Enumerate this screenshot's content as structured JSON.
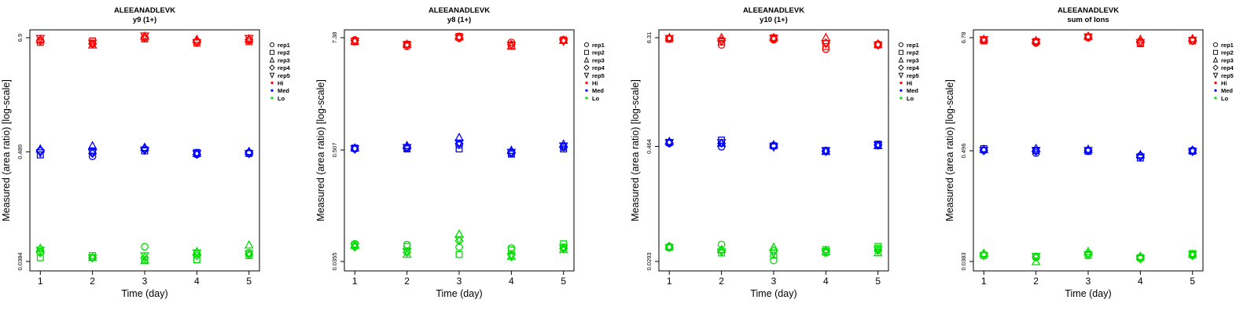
{
  "chart_data": [
    {
      "type": "scatter",
      "title": "ALEEANADLEVK",
      "subtitle": "y9 (1+)",
      "xlabel": "Time (day)",
      "ylabel": "Measured (area ratio) [log-scale]",
      "x_ticks": [
        "1",
        "2",
        "3",
        "4",
        "5"
      ],
      "y_ticks": [
        "0.0384",
        "0.489",
        "6.9"
      ],
      "y_scale": "log",
      "ylim": [
        0.0384,
        6.9
      ],
      "legend": {
        "placement": "right",
        "entries": [
          {
            "label": "rep1",
            "symbol": "circle"
          },
          {
            "label": "rep2",
            "symbol": "square"
          },
          {
            "label": "rep3",
            "symbol": "triangle"
          },
          {
            "label": "rep4",
            "symbol": "diamond"
          },
          {
            "label": "rep5",
            "symbol": "triangle-down"
          },
          {
            "label": "Hi",
            "dot_color": "#ff0000"
          },
          {
            "label": "Med",
            "dot_color": "#0000ff"
          },
          {
            "label": "Lo",
            "dot_color": "#00dd00"
          }
        ]
      },
      "series": [
        {
          "group": "Hi",
          "color": "#ff0000",
          "reps": [
            [
              6.5,
              6.0,
              6.9,
              6.3,
              6.5
            ],
            [
              6.2,
              6.4,
              6.7,
              6.1,
              6.3
            ],
            [
              6.6,
              5.8,
              7.1,
              6.6,
              6.7
            ],
            [
              6.4,
              6.0,
              6.9,
              6.4,
              6.6
            ],
            [
              6.8,
              6.1,
              7.2,
              6.2,
              6.8
            ]
          ]
        },
        {
          "group": "Med",
          "color": "#0000ff",
          "reps": [
            [
              0.5,
              0.44,
              0.52,
              0.46,
              0.48
            ],
            [
              0.455,
              0.5,
              0.5,
              0.48,
              0.47
            ],
            [
              0.52,
              0.56,
              0.54,
              0.47,
              0.49
            ],
            [
              0.5,
              0.47,
              0.53,
              0.46,
              0.48
            ],
            [
              0.48,
              0.48,
              0.51,
              0.47,
              0.47
            ]
          ]
        },
        {
          "group": "Lo",
          "color": "#00dd00",
          "reps": [
            [
              0.048,
              0.042,
              0.054,
              0.046,
              0.047
            ],
            [
              0.042,
              0.044,
              0.04,
              0.04,
              0.044
            ],
            [
              0.052,
              0.042,
              0.039,
              0.048,
              0.056
            ],
            [
              0.047,
              0.042,
              0.042,
              0.044,
              0.045
            ],
            [
              0.05,
              0.042,
              0.044,
              0.047,
              0.046
            ]
          ]
        }
      ]
    },
    {
      "type": "scatter",
      "title": "ALEEANADLEVK",
      "subtitle": "y8 (1+)",
      "xlabel": "Time (day)",
      "ylabel": "Measured (area ratio) [log-scale]",
      "x_ticks": [
        "1",
        "2",
        "3",
        "4",
        "5"
      ],
      "y_ticks": [
        "0.0355",
        "0.507",
        "7.38"
      ],
      "y_scale": "log",
      "ylim": [
        0.0355,
        7.38
      ],
      "legend": {
        "placement": "right",
        "entries": [
          {
            "label": "rep1",
            "symbol": "circle"
          },
          {
            "label": "rep2",
            "symbol": "square"
          },
          {
            "label": "rep3",
            "symbol": "triangle"
          },
          {
            "label": "rep4",
            "symbol": "diamond"
          },
          {
            "label": "rep5",
            "symbol": "triangle-down"
          },
          {
            "label": "Hi",
            "dot_color": "#ff0000"
          },
          {
            "label": "Med",
            "dot_color": "#0000ff"
          },
          {
            "label": "Lo",
            "dot_color": "#00dd00"
          }
        ]
      },
      "series": [
        {
          "group": "Hi",
          "color": "#ff0000",
          "reps": [
            [
              7.0,
              6.0,
              7.3,
              6.6,
              6.9
            ],
            [
              6.7,
              6.3,
              7.6,
              6.1,
              7.0
            ],
            [
              6.8,
              6.3,
              7.5,
              6.0,
              6.9
            ],
            [
              6.9,
              6.2,
              7.3,
              6.3,
              7.0
            ],
            [
              6.8,
              6.2,
              7.4,
              6.2,
              6.8
            ]
          ]
        },
        {
          "group": "Med",
          "color": "#0000ff",
          "reps": [
            [
              0.52,
              0.53,
              0.57,
              0.47,
              0.54
            ],
            [
              0.53,
              0.52,
              0.52,
              0.46,
              0.52
            ],
            [
              0.53,
              0.56,
              0.68,
              0.5,
              0.58
            ],
            [
              0.52,
              0.54,
              0.59,
              0.48,
              0.55
            ],
            [
              0.52,
              0.54,
              0.6,
              0.48,
              0.56
            ]
          ]
        },
        {
          "group": "Lo",
          "color": "#00dd00",
          "reps": [
            [
              0.054,
              0.053,
              0.05,
              0.049,
              0.05
            ],
            [
              0.053,
              0.051,
              0.042,
              0.047,
              0.054
            ],
            [
              0.052,
              0.042,
              0.068,
              0.04,
              0.047
            ],
            [
              0.05,
              0.044,
              0.058,
              0.042,
              0.048
            ],
            [
              0.051,
              0.045,
              0.06,
              0.04,
              0.049
            ]
          ]
        }
      ]
    },
    {
      "type": "scatter",
      "title": "ALEEANADLEVK",
      "subtitle": "y10 (1+)",
      "xlabel": "Time (day)",
      "ylabel": "Measured (area ratio) [log-scale]",
      "x_ticks": [
        "1",
        "2",
        "3",
        "4",
        "5"
      ],
      "y_ticks": [
        "0.0293",
        "0.464",
        "6.31"
      ],
      "y_scale": "log",
      "ylim": [
        0.0293,
        6.31
      ],
      "legend": {
        "placement": "right",
        "entries": [
          {
            "label": "rep1",
            "symbol": "circle"
          },
          {
            "label": "rep2",
            "symbol": "square"
          },
          {
            "label": "rep3",
            "symbol": "triangle"
          },
          {
            "label": "rep4",
            "symbol": "diamond"
          },
          {
            "label": "rep5",
            "symbol": "triangle-down"
          },
          {
            "label": "Hi",
            "dot_color": "#ff0000"
          },
          {
            "label": "Med",
            "dot_color": "#0000ff"
          },
          {
            "label": "Lo",
            "dot_color": "#00dd00"
          }
        ]
      },
      "series": [
        {
          "group": "Hi",
          "color": "#ff0000",
          "reps": [
            [
              6.2,
              5.3,
              6.0,
              4.8,
              5.4
            ],
            [
              6.1,
              5.7,
              6.3,
              5.1,
              5.3
            ],
            [
              6.3,
              6.3,
              6.3,
              6.3,
              5.4
            ],
            [
              6.2,
              5.9,
              6.1,
              5.6,
              5.4
            ],
            [
              6.2,
              5.8,
              6.2,
              5.5,
              5.3
            ]
          ]
        },
        {
          "group": "Med",
          "color": "#0000ff",
          "reps": [
            [
              0.5,
              0.46,
              0.47,
              0.42,
              0.48
            ],
            [
              0.51,
              0.54,
              0.47,
              0.42,
              0.49
            ],
            [
              0.52,
              0.5,
              0.48,
              0.41,
              0.47
            ],
            [
              0.5,
              0.5,
              0.47,
              0.41,
              0.48
            ],
            [
              0.51,
              0.51,
              0.46,
              0.42,
              0.48
            ]
          ]
        },
        {
          "group": "Lo",
          "color": "#00dd00",
          "reps": [
            [
              0.042,
              0.044,
              0.03,
              0.036,
              0.04
            ],
            [
              0.041,
              0.036,
              0.034,
              0.039,
              0.042
            ],
            [
              0.042,
              0.039,
              0.041,
              0.037,
              0.036
            ],
            [
              0.041,
              0.038,
              0.038,
              0.038,
              0.038
            ],
            [
              0.041,
              0.037,
              0.036,
              0.037,
              0.039
            ]
          ]
        }
      ]
    },
    {
      "type": "scatter",
      "title": "ALEEANADLEVK",
      "subtitle": "sum of Ions",
      "xlabel": "Time (day)",
      "ylabel": "Measured (area ratio) [log-scale]",
      "x_ticks": [
        "1",
        "2",
        "3",
        "4",
        "5"
      ],
      "y_ticks": [
        "0.0383",
        "0.496",
        "6.78"
      ],
      "y_scale": "log",
      "ylim": [
        0.0383,
        6.78
      ],
      "legend": {
        "placement": "right",
        "entries": [
          {
            "label": "rep1",
            "symbol": "circle"
          },
          {
            "label": "rep2",
            "symbol": "square"
          },
          {
            "label": "rep3",
            "symbol": "triangle"
          },
          {
            "label": "rep4",
            "symbol": "diamond"
          },
          {
            "label": "rep5",
            "symbol": "triangle-down"
          },
          {
            "label": "Hi",
            "dot_color": "#ff0000"
          },
          {
            "label": "Med",
            "dot_color": "#0000ff"
          },
          {
            "label": "Lo",
            "dot_color": "#00dd00"
          }
        ]
      },
      "series": [
        {
          "group": "Hi",
          "color": "#ff0000",
          "reps": [
            [
              6.4,
              6.0,
              6.8,
              6.0,
              6.3
            ],
            [
              6.3,
              6.2,
              6.9,
              5.9,
              6.3
            ],
            [
              6.5,
              6.3,
              7.0,
              6.5,
              6.6
            ],
            [
              6.4,
              6.1,
              6.8,
              6.2,
              6.4
            ],
            [
              6.5,
              6.1,
              6.9,
              6.1,
              6.4
            ]
          ]
        },
        {
          "group": "Med",
          "color": "#0000ff",
          "reps": [
            [
              0.5,
              0.47,
              0.5,
              0.44,
              0.5
            ],
            [
              0.52,
              0.5,
              0.49,
              0.42,
              0.49
            ],
            [
              0.51,
              0.52,
              0.51,
              0.45,
              0.5
            ],
            [
              0.5,
              0.49,
              0.5,
              0.44,
              0.5
            ],
            [
              0.5,
              0.5,
              0.5,
              0.43,
              0.49
            ]
          ]
        },
        {
          "group": "Lo",
          "color": "#00dd00",
          "reps": [
            [
              0.045,
              0.043,
              0.046,
              0.041,
              0.044
            ],
            [
              0.044,
              0.043,
              0.044,
              0.042,
              0.046
            ],
            [
              0.046,
              0.038,
              0.048,
              0.043,
              0.045
            ],
            [
              0.045,
              0.042,
              0.045,
              0.042,
              0.044
            ],
            [
              0.044,
              0.043,
              0.045,
              0.041,
              0.045
            ]
          ]
        }
      ]
    }
  ]
}
